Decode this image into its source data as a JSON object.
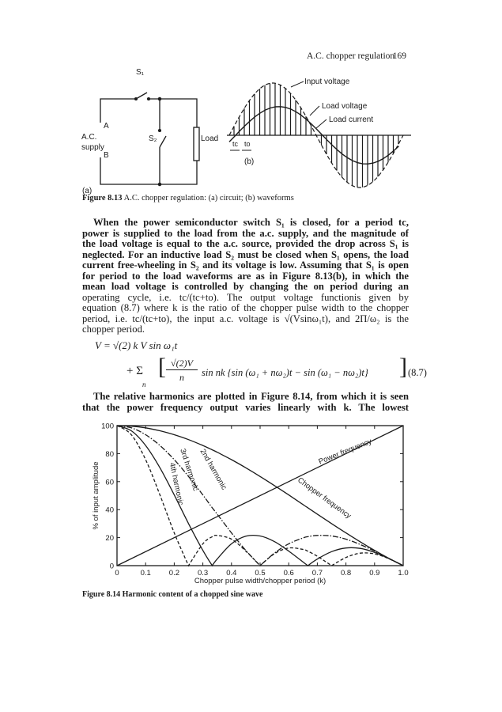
{
  "running_head": {
    "title": "A.C. chopper regulation",
    "page_number": "169"
  },
  "figure_8_13": {
    "circuit": {
      "s1": "S₁",
      "s2": "S₂",
      "a": "A",
      "supply_1": "A.C.",
      "supply_2": "supply",
      "b": "B",
      "load": "Load",
      "panel": "(a)"
    },
    "waveforms": {
      "input_voltage": "Input voltage",
      "load_voltage": "Load voltage",
      "load_current": "Load current",
      "tc": "tc",
      "to": "to",
      "panel": "(b)"
    },
    "caption_label": "Figure 8.13",
    "caption_text": "A.C. chopper regulation: (a) circuit; (b) waveforms"
  },
  "paragraph_1": [
    "When the power semiconductor switch S₁ is closed, for a period tc,",
    "power is supplied to the load from the a.c. supply, and the magnitude of",
    "the load voltage is equal to the a.c. source, provided the drop across S₁ is",
    "neglected. For an inductive load S₂ must be closed when S₁ opens, the load",
    "current free-wheeling in S₂ and its voltage is low. Assuming that S₁ is open",
    "for period to the load waveforms are as in Figure 8.13(b), in which the",
    "mean load voltage is controlled by changing the on period during an",
    "operating cycle, i.e. tc/(tc+to). The output voltage functionis given by",
    "equation (8.7) where k is the ratio of the chopper pulse width to the chopper",
    "period, i.e. tc/(tc+to), the input a.c. voltage is √(Vsinω₁t), and 2Π/ω₂ is the",
    "chopper period."
  ],
  "equation": {
    "line1": "V  =  √(2) k V sin ω₁t",
    "plus_sum": "+ Σ",
    "sum_index": "n",
    "numerator": "√(2)V",
    "denominator": "n",
    "body": "sin nk {sin (ω₁ + nω₂)t − sin (ω₁ − nω₂)t}",
    "number": "(8.7)"
  },
  "paragraph_2": [
    "The relative harmonics are plotted in Figure 8.14, from which it is seen",
    "that the power frequency output varies linearly with k. The lowest"
  ],
  "chart_data": {
    "type": "line",
    "xlabel": "Chopper pulse width/chopper period (k)",
    "ylabel": "% of input amplitude",
    "xlim": [
      0,
      1.0
    ],
    "ylim": [
      0,
      100
    ],
    "x_ticks": [
      "0",
      "0.1",
      "0.2",
      "0.3",
      "0.4",
      "0.5",
      "0.6",
      "0.7",
      "0.8",
      "0.9",
      "1.0"
    ],
    "y_ticks": [
      "0",
      "20",
      "40",
      "60",
      "80",
      "100"
    ],
    "grid": false,
    "x": [
      0,
      0.05,
      0.1,
      0.15,
      0.2,
      0.25,
      0.3,
      0.333,
      0.35,
      0.4,
      0.45,
      0.5,
      0.55,
      0.6,
      0.65,
      0.667,
      0.7,
      0.75,
      0.8,
      0.85,
      0.9,
      0.95,
      1.0
    ],
    "series": [
      {
        "name": "Power frequency",
        "style": "solid",
        "values": [
          0,
          5,
          10,
          15,
          20,
          25,
          30,
          33.3,
          35,
          40,
          45,
          50,
          55,
          60,
          65,
          66.7,
          70,
          75,
          80,
          85,
          90,
          95,
          100
        ]
      },
      {
        "name": "Chopper frequency",
        "style": "solid",
        "values": [
          100,
          99.6,
          98.4,
          96.3,
          93.5,
          90.0,
          85.8,
          82.7,
          81.0,
          75.7,
          69.9,
          63.7,
          57.2,
          50.5,
          43.6,
          41.3,
          36.8,
          30.0,
          23.4,
          17.0,
          10.9,
          5.2,
          0
        ]
      },
      {
        "name": "2nd harmonic",
        "style": "dash-dot",
        "values": [
          100,
          98.4,
          93.5,
          85.8,
          75.7,
          63.7,
          50.5,
          41.3,
          36.8,
          23.4,
          10.9,
          0,
          8.9,
          15.6,
          19.8,
          20.7,
          21.6,
          21.2,
          18.9,
          15.1,
          10.4,
          5.2,
          0
        ]
      },
      {
        "name": "3rd harmonic",
        "style": "solid",
        "values": [
          100,
          96.3,
          85.8,
          69.9,
          50.5,
          30.0,
          10.9,
          0,
          4.7,
          15.6,
          21.0,
          21.2,
          17.2,
          10.4,
          2.6,
          0,
          4.7,
          10.0,
          12.6,
          12.3,
          9.5,
          5.1,
          0
        ]
      },
      {
        "name": "4th harmonic",
        "style": "dashed",
        "values": [
          100,
          93.5,
          75.7,
          50.5,
          23.4,
          0,
          15.6,
          20.7,
          21.6,
          18.9,
          10.4,
          0,
          8.5,
          12.6,
          11.6,
          10.3,
          6.7,
          0,
          5.8,
          8.9,
          8.4,
          4.9,
          0
        ]
      }
    ],
    "caption_label": "Figure 8.14",
    "caption_text": "Harmonic content of a chopped sine wave"
  }
}
